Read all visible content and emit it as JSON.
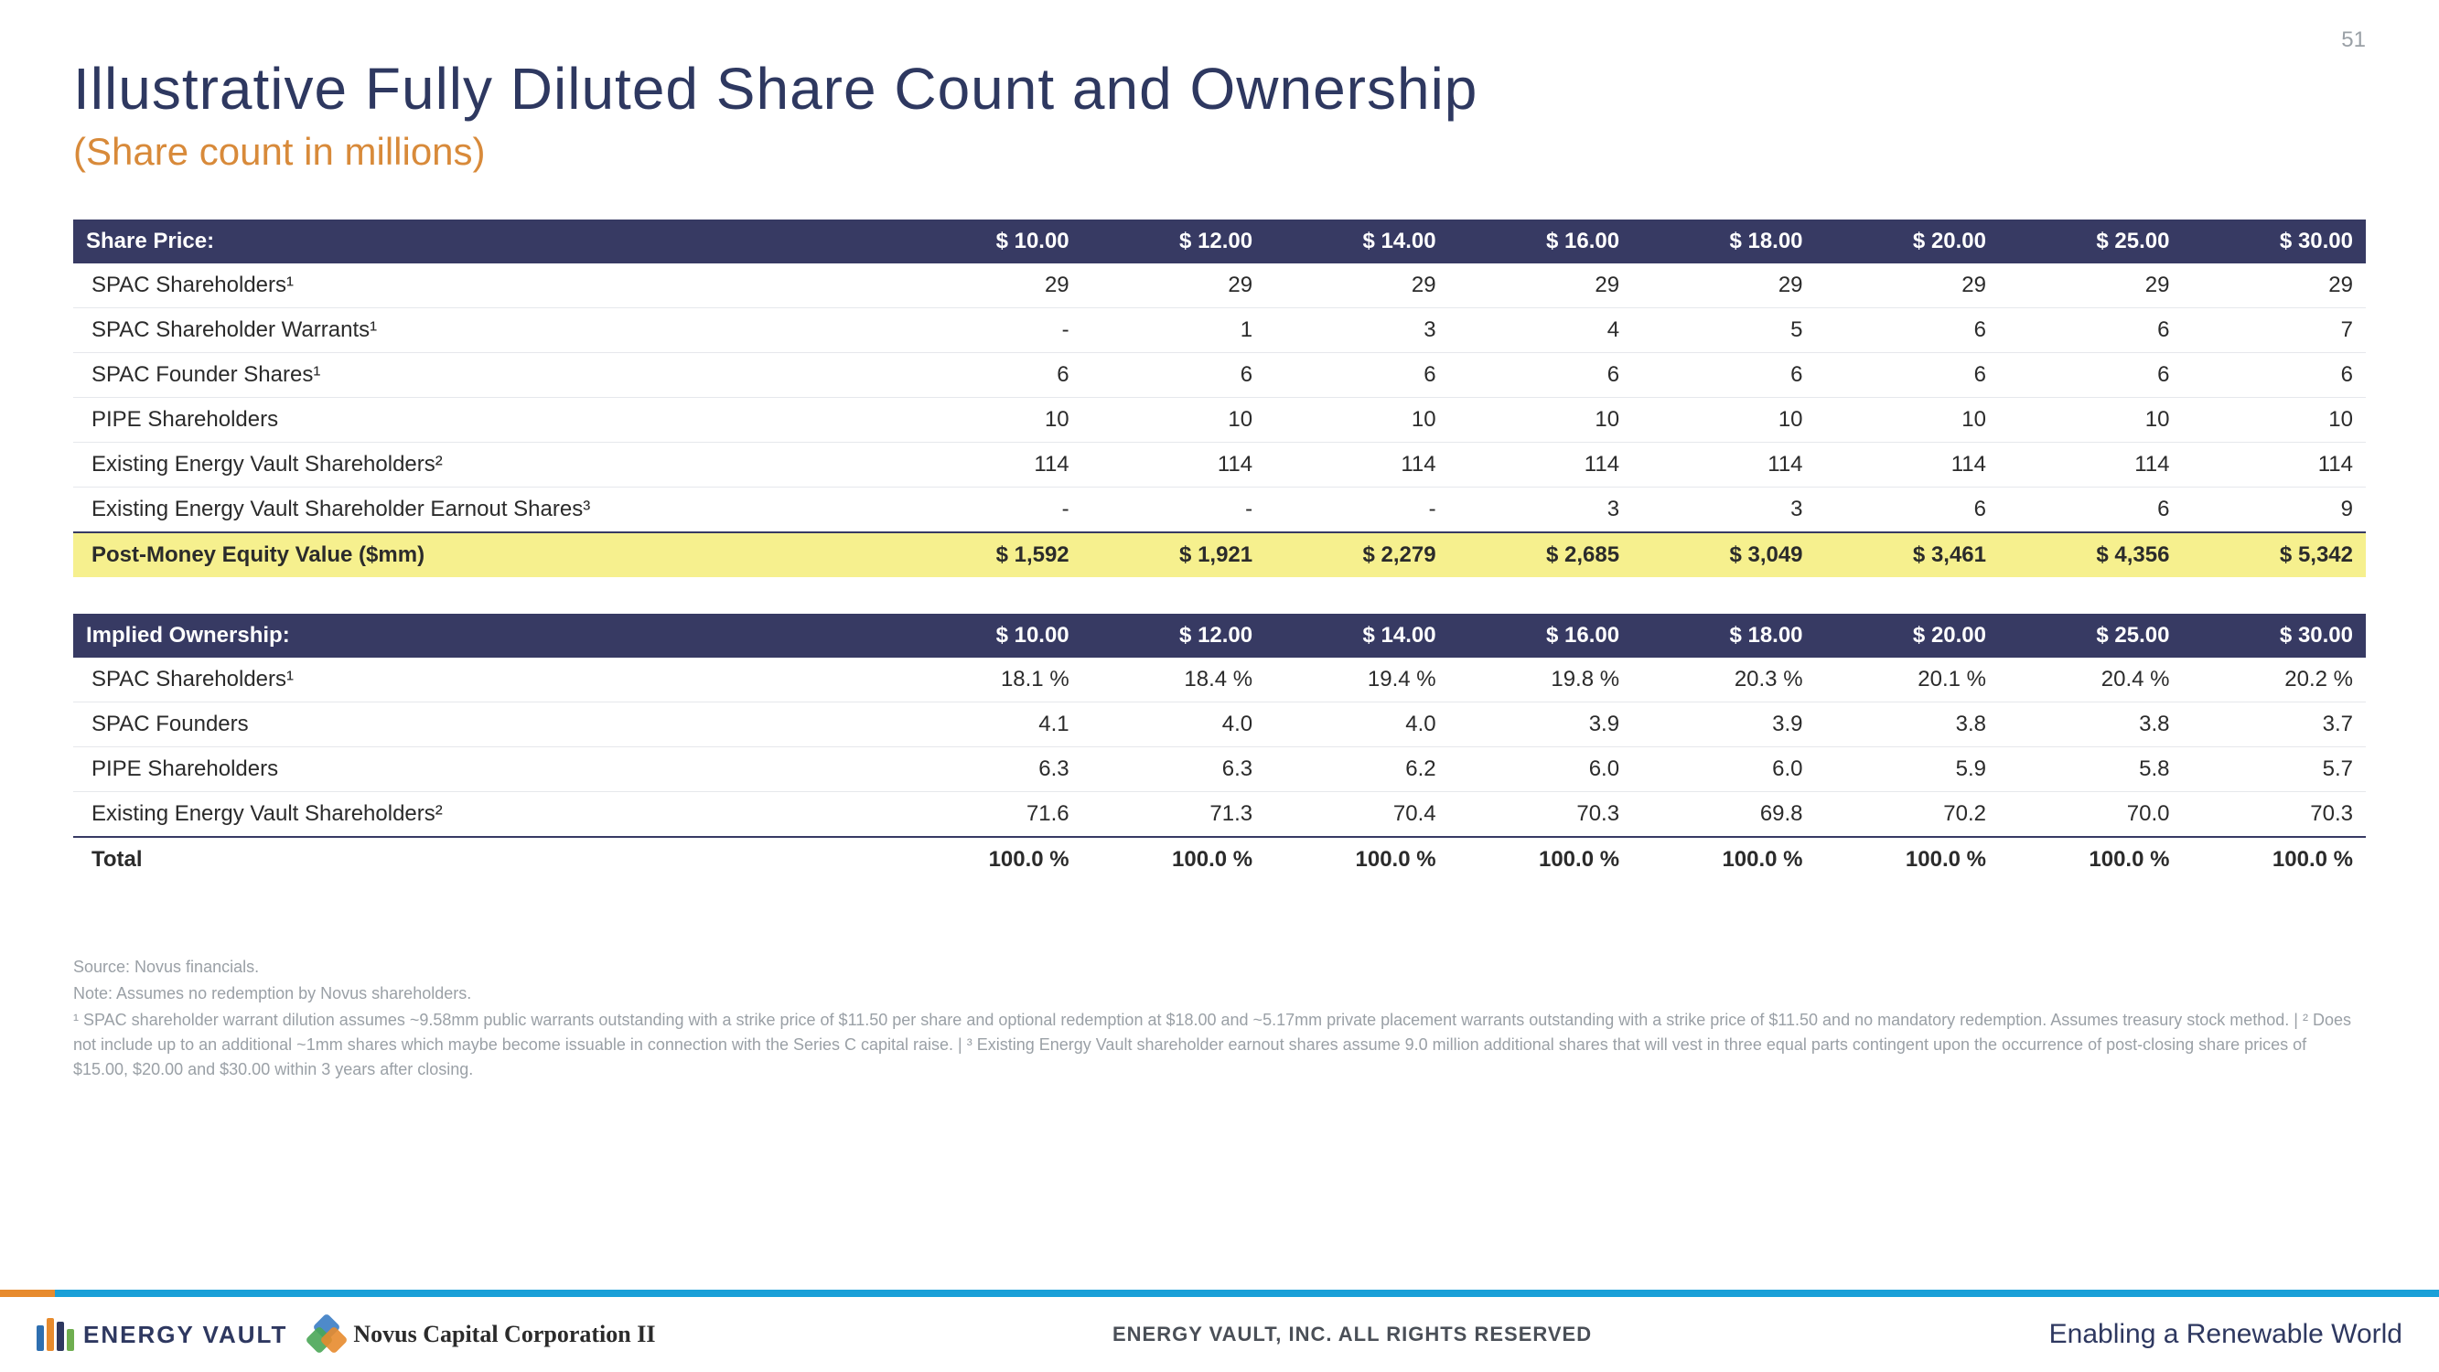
{
  "page_number": "51",
  "title": "Illustrative Fully Diluted Share Count and Ownership",
  "subtitle": "(Share count in millions)",
  "colors": {
    "title": "#2e3860",
    "subtitle": "#d88a3a",
    "header_bg": "#373a63",
    "header_fg": "#ffffff",
    "row_border": "#e6e8ec",
    "highlight_bg": "#f6f08e",
    "footnote": "#9aa0a6",
    "bar_main": "#1aa0d8",
    "bar_accent": "#e78b2e"
  },
  "table1": {
    "header_label": "Share Price:",
    "header_values": [
      "$ 10.00",
      "$ 12.00",
      "$ 14.00",
      "$ 16.00",
      "$ 18.00",
      "$ 20.00",
      "$ 25.00",
      "$ 30.00"
    ],
    "rows": [
      {
        "label": "SPAC Shareholders¹",
        "values": [
          "29",
          "29",
          "29",
          "29",
          "29",
          "29",
          "29",
          "29"
        ]
      },
      {
        "label": "SPAC Shareholder Warrants¹",
        "values": [
          "-",
          "1",
          "3",
          "4",
          "5",
          "6",
          "6",
          "7"
        ]
      },
      {
        "label": "SPAC Founder Shares¹",
        "values": [
          "6",
          "6",
          "6",
          "6",
          "6",
          "6",
          "6",
          "6"
        ]
      },
      {
        "label": "PIPE Shareholders",
        "values": [
          "10",
          "10",
          "10",
          "10",
          "10",
          "10",
          "10",
          "10"
        ]
      },
      {
        "label": "Existing Energy Vault Shareholders²",
        "values": [
          "114",
          "114",
          "114",
          "114",
          "114",
          "114",
          "114",
          "114"
        ]
      },
      {
        "label": "Existing Energy Vault Shareholder Earnout Shares³",
        "values": [
          "-",
          "-",
          "-",
          "3",
          "3",
          "6",
          "6",
          "9"
        ]
      }
    ],
    "highlight_row": {
      "label": "Post-Money Equity Value ($mm)",
      "values": [
        "$ 1,592",
        "$ 1,921",
        "$ 2,279",
        "$ 2,685",
        "$ 3,049",
        "$ 3,461",
        "$ 4,356",
        "$ 5,342"
      ]
    }
  },
  "table2": {
    "header_label": "Implied Ownership:",
    "header_values": [
      "$ 10.00",
      "$ 12.00",
      "$ 14.00",
      "$ 16.00",
      "$ 18.00",
      "$ 20.00",
      "$ 25.00",
      "$ 30.00"
    ],
    "rows": [
      {
        "label": "SPAC Shareholders¹",
        "values": [
          "18.1 %",
          "18.4 %",
          "19.4 %",
          "19.8 %",
          "20.3 %",
          "20.1 %",
          "20.4 %",
          "20.2 %"
        ]
      },
      {
        "label": "SPAC Founders",
        "values": [
          "4.1",
          "4.0",
          "4.0",
          "3.9",
          "3.9",
          "3.8",
          "3.8",
          "3.7"
        ]
      },
      {
        "label": "PIPE Shareholders",
        "values": [
          "6.3",
          "6.3",
          "6.2",
          "6.0",
          "6.0",
          "5.9",
          "5.8",
          "5.7"
        ]
      },
      {
        "label": "Existing Energy Vault Shareholders²",
        "values": [
          "71.6",
          "71.3",
          "70.4",
          "70.3",
          "69.8",
          "70.2",
          "70.0",
          "70.3"
        ]
      }
    ],
    "total_row": {
      "label": "Total",
      "values": [
        "100.0 %",
        "100.0 %",
        "100.0 %",
        "100.0 %",
        "100.0 %",
        "100.0 %",
        "100.0 %",
        "100.0 %"
      ]
    }
  },
  "footnotes": [
    "Source: Novus financials.",
    "Note: Assumes no redemption by Novus shareholders.",
    "¹ SPAC shareholder warrant dilution assumes ~9.58mm public warrants outstanding with a strike price of $11.50 per share and optional redemption at $18.00 and ~5.17mm private placement warrants outstanding with a strike price of $11.50 and no mandatory redemption. Assumes treasury stock method. | ² Does not include up to an additional ~1mm shares which maybe become issuable in connection with the Series C capital raise. | ³ Existing Energy Vault shareholder earnout shares assume 9.0 million additional shares that will vest in three equal parts contingent upon the occurrence of post-closing share prices of $15.00, $20.00 and $30.00 within 3 years after closing."
  ],
  "footer": {
    "ev_logo_text": "ENERGY VAULT",
    "novus_text": "Novus Capital Corporation II",
    "center": "ENERGY VAULT, INC. ALL RIGHTS RESERVED",
    "tagline": "Enabling a Renewable World",
    "ev_bar_colors": [
      "#2e6fb0",
      "#e78b2e",
      "#2e3860",
      "#6fae4f"
    ],
    "ev_bar_heights": [
      28,
      36,
      32,
      24
    ],
    "novus_colors": [
      "#3b7dc4",
      "#4aa657",
      "#e78b2e"
    ]
  }
}
